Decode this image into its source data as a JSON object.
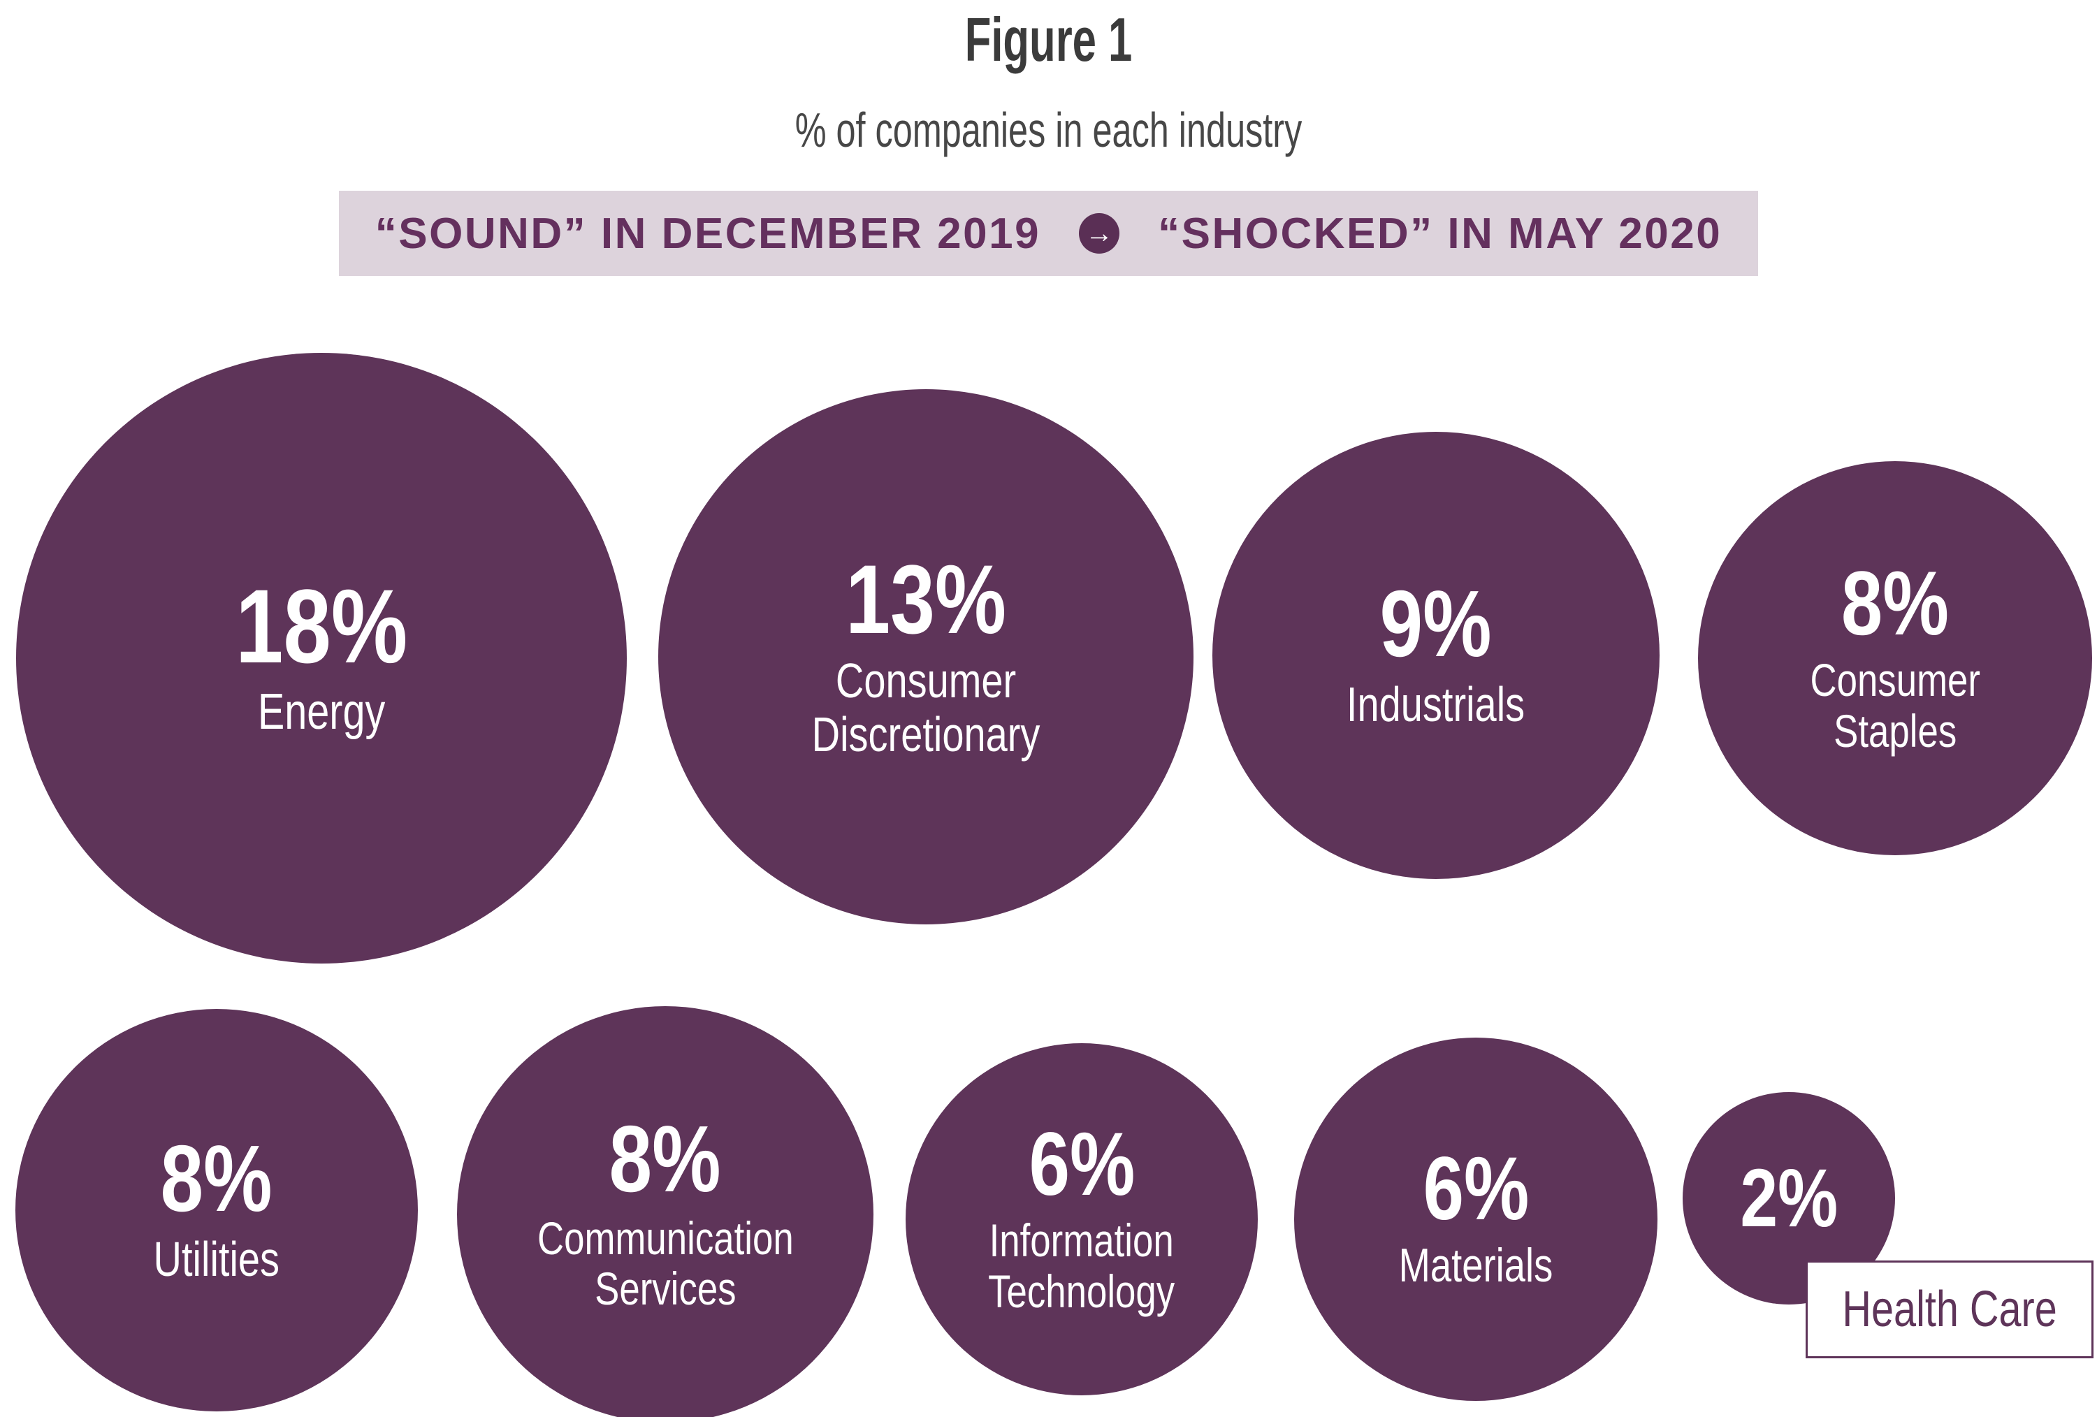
{
  "figure": {
    "title": "Figure 1",
    "subtitle": "% of companies in each industry",
    "banner": {
      "left": "“SOUND” IN DECEMBER 2019",
      "right": "“SHOCKED” IN MAY 2020",
      "arrow_icon": "→",
      "background": "#DDD3DC",
      "text_color": "#64305E"
    },
    "colors": {
      "bubble_fill": "#5E3459",
      "bubble_text": "#FFFFFF",
      "title_text": "#3B3B3B",
      "subtitle_text": "#474747",
      "health_care_box_border": "#5E3459"
    }
  },
  "chart_data": {
    "type": "bubble",
    "title": "Figure 1",
    "subtitle": "% of companies in each industry",
    "annotation": "“SOUND” IN DECEMBER 2019 → “SHOCKED” IN MAY 2020",
    "unit": "percent of companies",
    "layout": "two rows of circles, area proportional to value; Health Care label shown outside its circle in a bordered box",
    "points": [
      {
        "label": "Energy",
        "value": 18,
        "display": "18%"
      },
      {
        "label": "Consumer Discretionary",
        "value": 13,
        "display": "13%"
      },
      {
        "label": "Industrials",
        "value": 9,
        "display": "9%"
      },
      {
        "label": "Consumer Staples",
        "value": 8,
        "display": "8%"
      },
      {
        "label": "Utilities",
        "value": 8,
        "display": "8%"
      },
      {
        "label": "Communication Services",
        "value": 8,
        "display": "8%"
      },
      {
        "label": "Information Technology",
        "value": 6,
        "display": "6%"
      },
      {
        "label": "Materials",
        "value": 6,
        "display": "6%"
      },
      {
        "label": "Health Care",
        "value": 2,
        "display": "2%",
        "label_outside": true
      }
    ]
  }
}
